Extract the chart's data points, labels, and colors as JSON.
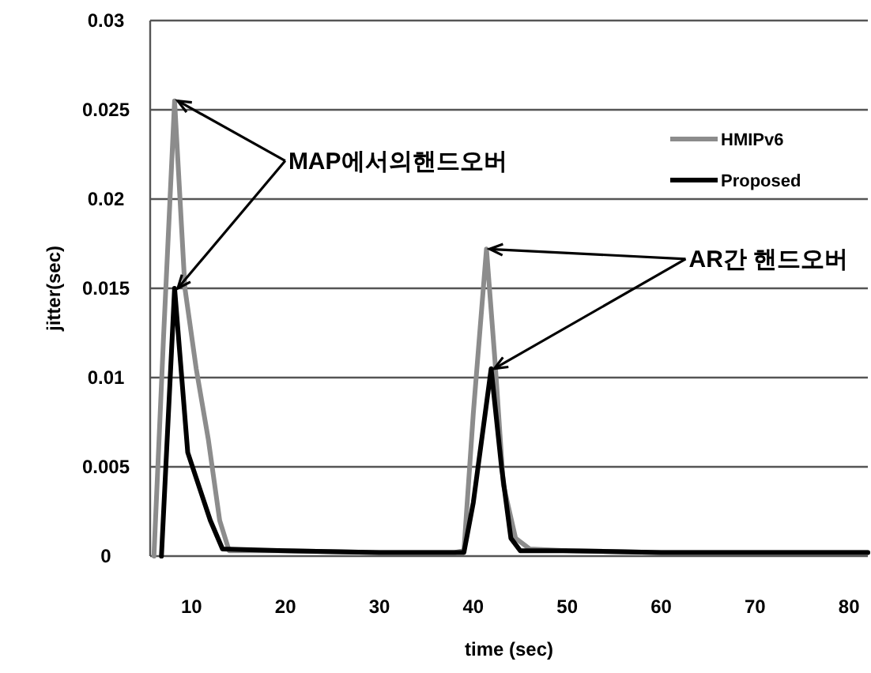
{
  "chart_data": {
    "type": "line",
    "xlabel": "time (sec)",
    "ylabel": "jitter(sec)",
    "xlim": [
      5.6,
      82
    ],
    "xticks": [
      10,
      20,
      30,
      40,
      50,
      60,
      70,
      80
    ],
    "ylim": [
      0,
      0.03
    ],
    "yticks": [
      0,
      0.005,
      0.01,
      0.015,
      0.02,
      0.025,
      0.03
    ],
    "grid": "y",
    "legend": "top right",
    "marker": "none",
    "line_style": "solid",
    "series": [
      {
        "name": "HMIPv6",
        "color": "#8c8c8c",
        "x": [
          6,
          7,
          8.2,
          9.3,
          10.5,
          11.8,
          13,
          14,
          20,
          30,
          38,
          39,
          40,
          41.4,
          42.3,
          43.2,
          44.5,
          46,
          50,
          60,
          70,
          80,
          82
        ],
        "values": [
          0,
          0.012,
          0.0255,
          0.015,
          0.0105,
          0.0065,
          0.002,
          0.0003,
          0.0003,
          0.0002,
          0.0002,
          0.0003,
          0.008,
          0.0172,
          0.011,
          0.004,
          0.001,
          0.0004,
          0.0003,
          0.0002,
          0.0002,
          0.0002,
          0.0002
        ]
      },
      {
        "name": "Proposed",
        "color": "#000000",
        "x": [
          6.8,
          8.2,
          9.6,
          12,
          13.3,
          20,
          30,
          39,
          40,
          41.9,
          43,
          44,
          45,
          50,
          60,
          70,
          80,
          82
        ],
        "values": [
          0,
          0.015,
          0.0058,
          0.002,
          0.0004,
          0.0003,
          0.0002,
          0.0002,
          0.003,
          0.0105,
          0.005,
          0.001,
          0.0003,
          0.0003,
          0.0002,
          0.0002,
          0.0002,
          0.0002
        ]
      }
    ],
    "annotations": [
      {
        "text": "MAP에서의핸드오버",
        "x": 8.2,
        "y": 0.0255
      },
      {
        "text": "AR간 핸드오버",
        "x": 41.4,
        "y": 0.0172
      }
    ]
  }
}
